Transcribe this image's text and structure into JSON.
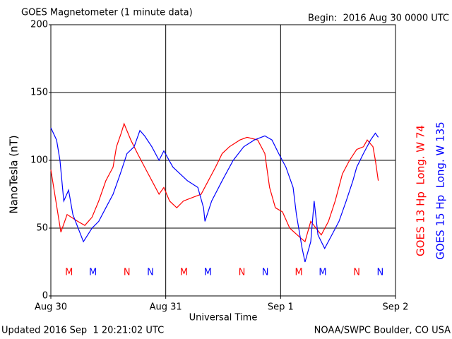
{
  "chart_data": {
    "type": "line",
    "title": "GOES Magnetometer (1 minute data)",
    "subtitle": "Begin:  2016 Aug 30 0000 UTC",
    "ylabel": "NanoTesla (nT)",
    "xlabel": "Universal Time",
    "footer_left": "Updated 2016 Sep  1 20:21:02 UTC",
    "footer_right": "NOAA/SWPC Boulder, CO USA",
    "xlim": [
      0,
      72
    ],
    "xticks": [
      {
        "value": 0,
        "label": "Aug 30"
      },
      {
        "value": 24,
        "label": "Aug 31"
      },
      {
        "value": 48,
        "label": "Sep 1"
      },
      {
        "value": 72,
        "label": "Sep 2"
      }
    ],
    "ylim": [
      0,
      200
    ],
    "yticks": [
      0,
      50,
      100,
      150,
      200
    ],
    "grid": true,
    "series": [
      {
        "name": "GOES 13 Hp  Long. W 74",
        "color": "#ff0000",
        "x": [
          0,
          2.1,
          3.4,
          5.6,
          7.1,
          8.6,
          10.0,
          11.5,
          13.0,
          13.7,
          14.7,
          15.3,
          16.7,
          18.1,
          19.6,
          21.1,
          22.6,
          23.6,
          24.8,
          26.3,
          27.7,
          29.9,
          31.4,
          32.9,
          34.4,
          35.8,
          37.3,
          39.5,
          41.0,
          43.2,
          44.7,
          45.7,
          46.9,
          48.4,
          49.9,
          52.1,
          53.1,
          54.3,
          56.5,
          58.0,
          59.4,
          60.9,
          62.4,
          63.9,
          65.3,
          66.1,
          67.3,
          67.8,
          68.4
        ],
        "values": [
          93,
          47,
          60,
          55,
          52,
          58,
          70,
          85,
          95,
          110,
          120,
          127,
          115,
          105,
          95,
          85,
          75,
          80,
          70,
          65,
          70,
          73,
          75,
          85,
          95,
          105,
          110,
          115,
          117,
          115,
          105,
          80,
          65,
          62,
          50,
          43,
          40,
          55,
          45,
          55,
          70,
          90,
          100,
          108,
          110,
          115,
          110,
          100,
          85
        ]
      },
      {
        "name": "GOES 15 Hp  Long. W 135",
        "color": "#0000ff",
        "x": [
          0,
          1.2,
          1.9,
          2.7,
          3.7,
          4.6,
          6.8,
          8.6,
          10.0,
          11.5,
          13.0,
          14.5,
          15.9,
          17.4,
          18.6,
          19.6,
          21.1,
          22.6,
          23.6,
          25.5,
          27.0,
          28.5,
          30.7,
          31.9,
          32.2,
          33.6,
          35.8,
          38.1,
          40.3,
          42.5,
          44.7,
          46.2,
          47.6,
          49.1,
          50.6,
          51.3,
          52.5,
          53.1,
          54.3,
          55.0,
          55.8,
          57.2,
          58.7,
          60.2,
          61.7,
          63.1,
          63.9,
          65.3,
          66.8,
          67.8,
          68.4
        ],
        "values": [
          124,
          115,
          100,
          70,
          78,
          60,
          40,
          50,
          55,
          65,
          75,
          90,
          105,
          110,
          122,
          118,
          110,
          100,
          107,
          95,
          90,
          85,
          80,
          65,
          55,
          70,
          85,
          100,
          110,
          115,
          118,
          115,
          105,
          95,
          80,
          60,
          35,
          25,
          40,
          70,
          45,
          35,
          45,
          55,
          70,
          85,
          95,
          105,
          115,
          120,
          117
        ]
      }
    ],
    "markers": [
      {
        "text": "M",
        "x": 3.8,
        "color": "#ff0000"
      },
      {
        "text": "M",
        "x": 8.8,
        "color": "#0000ff"
      },
      {
        "text": "N",
        "x": 15.9,
        "color": "#ff0000"
      },
      {
        "text": "N",
        "x": 20.8,
        "color": "#0000ff"
      },
      {
        "text": "M",
        "x": 27.8,
        "color": "#ff0000"
      },
      {
        "text": "M",
        "x": 32.8,
        "color": "#0000ff"
      },
      {
        "text": "N",
        "x": 39.9,
        "color": "#ff0000"
      },
      {
        "text": "N",
        "x": 44.8,
        "color": "#0000ff"
      },
      {
        "text": "M",
        "x": 51.8,
        "color": "#ff0000"
      },
      {
        "text": "M",
        "x": 56.8,
        "color": "#0000ff"
      },
      {
        "text": "N",
        "x": 63.9,
        "color": "#ff0000"
      },
      {
        "text": "N",
        "x": 68.8,
        "color": "#0000ff"
      }
    ]
  }
}
